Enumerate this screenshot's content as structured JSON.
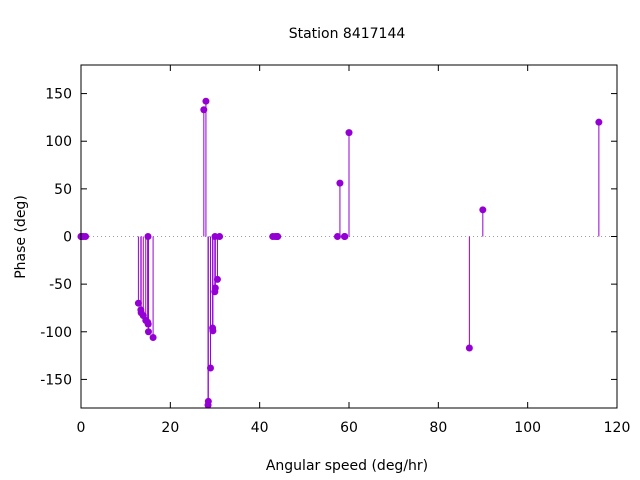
{
  "chart_data": {
    "type": "scatter",
    "title": "Station 8417144",
    "xlabel": "Angular speed (deg/hr)",
    "ylabel": "Phase (deg)",
    "xlim": [
      0,
      120
    ],
    "ylim": [
      -180,
      180
    ],
    "xticks": [
      0,
      20,
      40,
      60,
      80,
      100,
      120
    ],
    "yticks": [
      -150,
      -100,
      -50,
      0,
      50,
      100,
      150
    ],
    "grid": false,
    "zero_line": "dotted",
    "marker_color": "#9400d3",
    "points": [
      [
        0.0,
        0
      ],
      [
        0.04,
        0
      ],
      [
        0.08,
        0
      ],
      [
        0.54,
        0
      ],
      [
        1.02,
        0
      ],
      [
        12.85,
        -70
      ],
      [
        13.4,
        -77
      ],
      [
        13.47,
        -80
      ],
      [
        13.94,
        -83
      ],
      [
        14.5,
        -88
      ],
      [
        14.92,
        -90
      ],
      [
        15.0,
        0
      ],
      [
        15.04,
        -92
      ],
      [
        15.1,
        -100
      ],
      [
        16.14,
        -106
      ],
      [
        27.5,
        133
      ],
      [
        27.97,
        142
      ],
      [
        28.44,
        -177
      ],
      [
        28.51,
        -173
      ],
      [
        28.99,
        -138
      ],
      [
        29.46,
        -96
      ],
      [
        29.53,
        -99
      ],
      [
        29.96,
        -58
      ],
      [
        30.0,
        0
      ],
      [
        30.08,
        -54
      ],
      [
        30.55,
        -45
      ],
      [
        31.02,
        0
      ],
      [
        42.93,
        0
      ],
      [
        43.48,
        0
      ],
      [
        43.94,
        0
      ],
      [
        44.03,
        0
      ],
      [
        57.42,
        0
      ],
      [
        57.97,
        56
      ],
      [
        58.98,
        0
      ],
      [
        59.07,
        0
      ],
      [
        60.0,
        109
      ],
      [
        86.95,
        -117
      ],
      [
        89.96,
        28
      ],
      [
        115.94,
        120
      ]
    ]
  }
}
